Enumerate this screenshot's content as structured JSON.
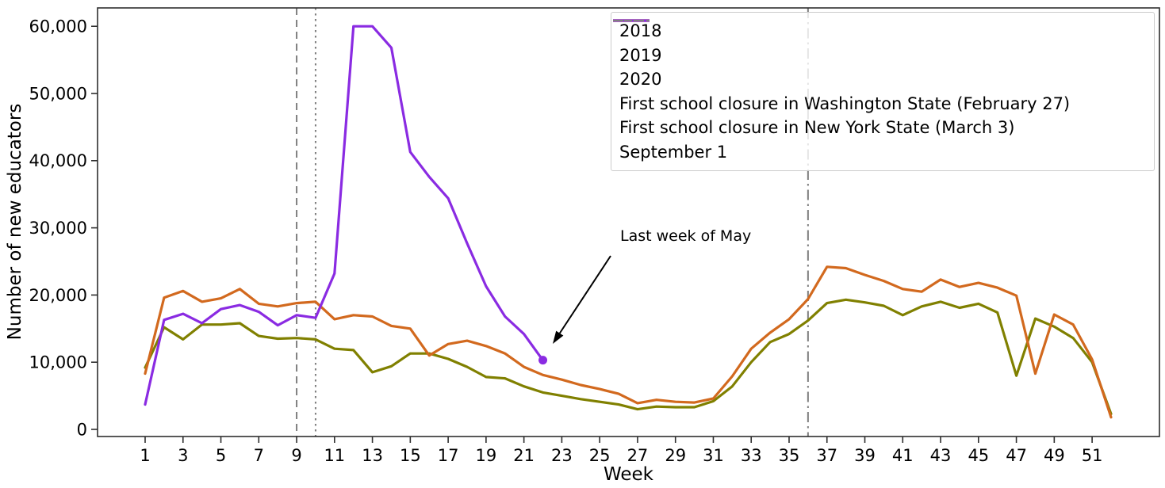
{
  "figure": {
    "x_axis_label": "Week",
    "y_axis_label": "Number of new educators",
    "background": "#ffffff"
  },
  "chart_data": {
    "type": "line",
    "title": "",
    "xlabel": "Week",
    "ylabel": "Number of new educators",
    "xlim": [
      1,
      52
    ],
    "ylim": [
      0,
      60000
    ],
    "grid": false,
    "legend_position": "upper right",
    "x_tick_weeks": [
      1,
      3,
      5,
      7,
      9,
      11,
      13,
      15,
      17,
      19,
      21,
      23,
      25,
      27,
      29,
      31,
      33,
      35,
      37,
      39,
      41,
      43,
      45,
      47,
      49,
      51
    ],
    "y_ticks": [
      {
        "value": 0,
        "label": "0"
      },
      {
        "value": 10000,
        "label": "10,000"
      },
      {
        "value": 20000,
        "label": "20,000"
      },
      {
        "value": 30000,
        "label": "30,000"
      },
      {
        "value": 40000,
        "label": "40,000"
      },
      {
        "value": 50000,
        "label": "50,000"
      },
      {
        "value": 60000,
        "label": "60,000"
      }
    ],
    "series": [
      {
        "name": "2018",
        "color": "#808000",
        "style": "solid",
        "start_week": 1,
        "values": [
          9200,
          15200,
          13400,
          15600,
          15600,
          15800,
          13900,
          13500,
          13600,
          13400,
          12000,
          11800,
          8500,
          9400,
          11300,
          11300,
          10500,
          9300,
          7800,
          7600,
          6400,
          5500,
          5000,
          4500,
          4100,
          3700,
          3000,
          3400,
          3300,
          3300,
          4200,
          6400,
          10000,
          13000,
          14200,
          16200,
          18800,
          19300,
          18900,
          18400,
          17000,
          18300,
          19000,
          18100,
          18700,
          17400,
          8000,
          16500,
          15300,
          13600,
          10000,
          2300
        ]
      },
      {
        "name": "2019",
        "color": "#D2691E",
        "style": "solid",
        "start_week": 1,
        "values": [
          8300,
          19600,
          20600,
          19000,
          19500,
          20900,
          18700,
          18300,
          18800,
          19000,
          16400,
          17000,
          16800,
          15400,
          15000,
          11000,
          12700,
          13200,
          12400,
          11300,
          9300,
          8100,
          7400,
          6600,
          6000,
          5300,
          3900,
          4400,
          4100,
          4000,
          4600,
          7900,
          12000,
          14400,
          16400,
          19400,
          24200,
          24000,
          23000,
          22100,
          20900,
          20500,
          22300,
          21200,
          21800,
          21100,
          19900,
          8300,
          17100,
          15600,
          10400,
          1800
        ]
      },
      {
        "name": "2020",
        "color": "#8A2BE2",
        "style": "solid",
        "start_week": 1,
        "end_marker": true,
        "values": [
          3700,
          16300,
          17200,
          15800,
          17900,
          18500,
          17500,
          15500,
          17000,
          16600,
          23200,
          60000,
          60000,
          56800,
          41300,
          37600,
          34400,
          27700,
          21300,
          16800,
          14200,
          10300
        ]
      }
    ],
    "vlines": [
      {
        "week": 9,
        "style": "dashed",
        "color": "#7f7f7f",
        "label": "First school closure in Washington State (February 27)"
      },
      {
        "week": 10,
        "style": "dotted",
        "color": "#7f7f7f",
        "label": "First school closure in New York State (March 3)"
      },
      {
        "week": 36,
        "style": "dashdot",
        "color": "#7f7f7f",
        "label": "September 1"
      }
    ],
    "annotation": {
      "text": "Last week of May",
      "target_week": 22,
      "target_value": 10300,
      "arrow_from": [
        770,
        323
      ],
      "arrow_to": [
        697,
        434
      ]
    }
  }
}
